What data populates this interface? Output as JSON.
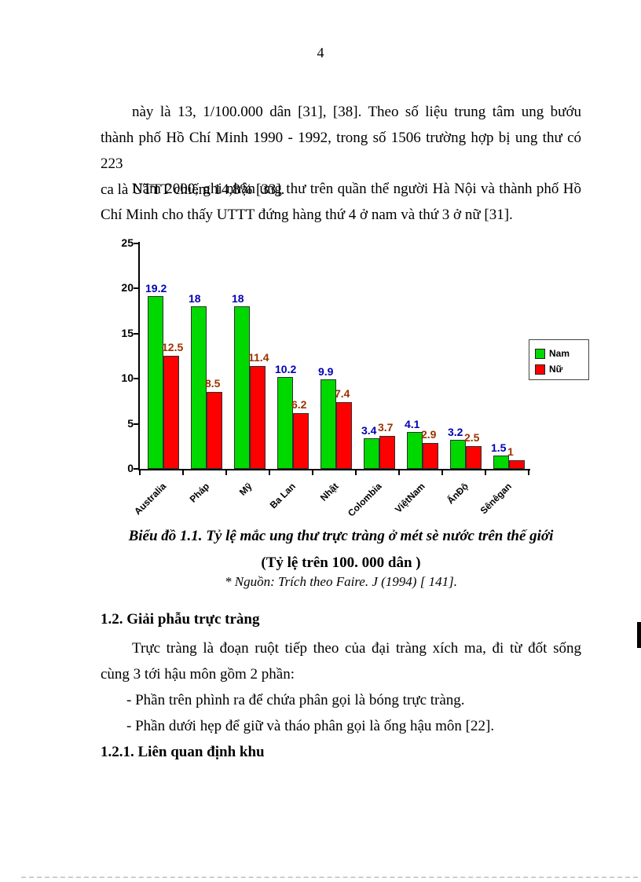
{
  "page_number": "4",
  "para1": {
    "lines": [
      "này là 13, 1/100.000 dân [31], [38]. Theo số liệu trung tâm ung bướu",
      "thành phố Hồ Chí Minh 1990 - 1992, trong số 1506 trường hợp bị ung thư có 223",
      "ca là UTTT chiếm 14,8% [33]."
    ]
  },
  "para2": {
    "lines": [
      "Năm 2000, ghi nhận ung thư trên quần thể người Hà Nội và thành phố Hồ",
      "Chí Minh cho thấy UTTT đứng hàng thứ 4 ở nam và thứ 3 ở nữ [31]."
    ]
  },
  "chart_caption": {
    "title": "Biểu đồ 1.1. Tỷ lệ mắc ung thư trực tràng ở mét sè nước trên thế giới",
    "subtitle": "(Tỷ lệ trên 100. 000 dân )",
    "source": "* Nguồn: Trích theo Faire. J (1994) [ 141]."
  },
  "section": {
    "heading": "1.2. Giải phẫu trực tràng",
    "para_lines": [
      "Trực tràng là đoạn ruột tiếp theo của đại tràng xích ma, đi từ đốt sống",
      "cùng 3 tới hậu môn gồm 2 phần:"
    ],
    "bullets": [
      "- Phần trên phình ra để chứa phân gọi là bóng trực tràng.",
      "- Phần dưới hẹp để giữ và tháo phân gọi là ống hậu môn [22]."
    ],
    "subheading": "1.2.1. Liên quan định khu"
  },
  "chart_data": {
    "type": "bar",
    "title": "Biểu đồ 1.1. Tỷ lệ mắc ung thư trực tràng ở mét sè nước trên thế giới",
    "subtitle": "(Tỷ lệ trên 100. 000 dân )",
    "categories": [
      "Australia",
      "Pháp",
      "Mỹ",
      "Ba Lan",
      "Nhật",
      "Colombia",
      "ViệtNam",
      "ẤnĐộ",
      "Sênêgan"
    ],
    "series": [
      {
        "name": "Nam",
        "color": "#00d900",
        "label_color": "#0000b3",
        "values": [
          19.2,
          18,
          18,
          10.2,
          9.9,
          3.4,
          4.1,
          3.2,
          1.5
        ]
      },
      {
        "name": "Nữ",
        "color": "#ff0000",
        "label_color": "#993300",
        "values": [
          12.5,
          8.5,
          11.4,
          6.2,
          7.4,
          3.7,
          2.9,
          2.5,
          1
        ]
      }
    ],
    "xlabel": "",
    "ylabel": "",
    "ylim": [
      0,
      25
    ],
    "ytick_step": 5,
    "grid": false,
    "legend_position": "right",
    "data_labels": true
  }
}
